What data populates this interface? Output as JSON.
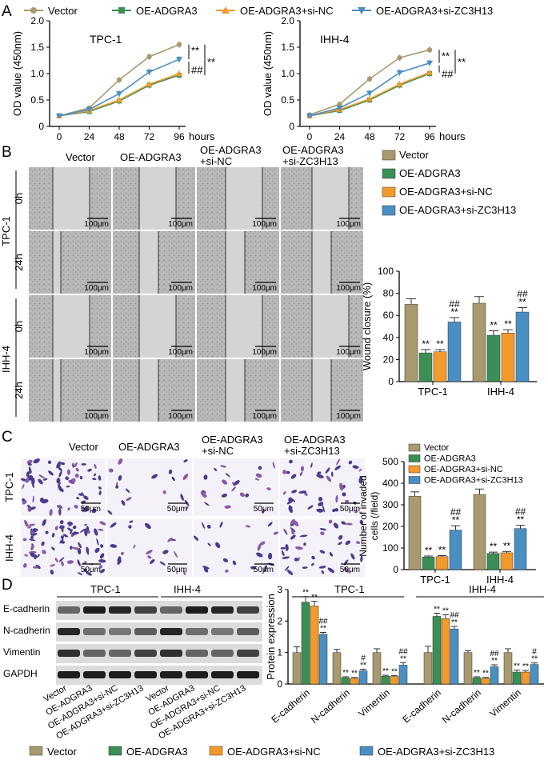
{
  "colors": {
    "vector": "#a89a6e",
    "oe": "#3b8f55",
    "sinc": "#f39a2c",
    "sizc": "#4a8fc2",
    "err": "#333333"
  },
  "legend_top": [
    "Vector",
    "OE-ADGRA3",
    "OE-ADGRA3+si-NC",
    "OE-ADGRA3+si-ZC3H13"
  ],
  "panel_labels": {
    "a": "A",
    "b": "B",
    "c": "C",
    "d": "D"
  },
  "cck8": {
    "ylabel": "OD value (450nm)",
    "x": [
      0,
      24,
      48,
      72,
      96
    ],
    "x_labels": [
      "0",
      "24",
      "48",
      "72",
      "96"
    ],
    "x_unit": "hours",
    "yticks": [
      "0",
      "0.5",
      "1.0",
      "1.5",
      "2.0"
    ],
    "plots": [
      {
        "title": "TPC-1",
        "marks": [
          "**",
          "##",
          "**"
        ],
        "series": [
          [
            0.2,
            0.35,
            0.88,
            1.32,
            1.55
          ],
          [
            0.2,
            0.28,
            0.48,
            0.78,
            0.97
          ],
          [
            0.2,
            0.3,
            0.5,
            0.8,
            1.0
          ],
          [
            0.2,
            0.32,
            0.62,
            1.03,
            1.27
          ]
        ]
      },
      {
        "title": "IHH-4",
        "marks": [
          "**",
          "##",
          "**"
        ],
        "series": [
          [
            0.22,
            0.42,
            0.9,
            1.3,
            1.45
          ],
          [
            0.2,
            0.3,
            0.5,
            0.78,
            1.0
          ],
          [
            0.2,
            0.32,
            0.52,
            0.8,
            1.02
          ],
          [
            0.2,
            0.35,
            0.63,
            1.02,
            1.2
          ]
        ]
      }
    ]
  },
  "wound": {
    "col_headers": [
      "Vector",
      "OE-ADGRA3",
      "OE-ADGRA3\n+si-NC",
      "OE-ADGRA3\n+si-ZC3H13"
    ],
    "cell_lines": [
      "TPC-1",
      "IHH-4"
    ],
    "times": [
      "0h",
      "24h"
    ],
    "scale": "100μm",
    "chart_data": {
      "type": "bar",
      "ylabel": "Wound closure (%)",
      "categories": [
        "TPC-1",
        "IHH-4"
      ],
      "yticks": [
        "0",
        "20",
        "40",
        "60",
        "80",
        "100"
      ],
      "ylim": [
        0,
        100
      ],
      "values": [
        [
          70,
          26,
          27,
          54
        ],
        [
          71,
          42,
          44,
          63
        ]
      ],
      "errors": [
        [
          5,
          3,
          2,
          4
        ],
        [
          6,
          4,
          3,
          4
        ]
      ],
      "marks": [
        [
          "",
          "**",
          "**",
          "##\n**"
        ],
        [
          "",
          "**",
          "**",
          "##\n**"
        ]
      ]
    }
  },
  "transwell": {
    "col_headers": [
      "Vector",
      "OE-ADGRA3",
      "OE-ADGRA3\n+si-NC",
      "OE-ADGRA3\n+si-ZC3H13"
    ],
    "cell_lines": [
      "TPC-1",
      "IHH-4"
    ],
    "scale": "50μm",
    "chart_data": {
      "type": "bar",
      "ylabel": "Number of invaded\ncells (/field)",
      "categories": [
        "TPC-1",
        "IHH-4"
      ],
      "yticks": [
        "0",
        "100",
        "200",
        "300",
        "400",
        "500"
      ],
      "ylim": [
        0,
        500
      ],
      "values": [
        [
          340,
          58,
          60,
          183
        ],
        [
          348,
          75,
          78,
          190
        ]
      ],
      "errors": [
        [
          20,
          5,
          5,
          20
        ],
        [
          25,
          6,
          6,
          15
        ]
      ],
      "marks": [
        [
          "",
          "**",
          "**",
          "##\n**"
        ],
        [
          "",
          "**",
          "**",
          "##\n**"
        ]
      ]
    }
  },
  "western": {
    "groups": [
      "TPC-1",
      "IHH-4"
    ],
    "proteins": [
      "E-cadherin",
      "N-cadherin",
      "Vimentin",
      "GAPDH"
    ],
    "lanes": [
      "Vector",
      "OE-ADGRA3",
      "OE-ADGRA3+si-NC",
      "OE-ADGRA3+si-ZC3H13"
    ],
    "intensity": [
      [
        0.55,
        0.95,
        0.9,
        0.75
      ],
      [
        0.9,
        0.5,
        0.45,
        0.6
      ],
      [
        0.85,
        0.55,
        0.55,
        0.75
      ],
      [
        0.95,
        0.95,
        0.95,
        0.95
      ]
    ]
  },
  "protein_chart": {
    "type": "bar",
    "ylabel": "Protein expression",
    "yticks": [
      "0",
      "1",
      "2",
      "3"
    ],
    "ylim": [
      0,
      3
    ],
    "groups": [
      "TPC-1",
      "IHH-4"
    ],
    "categories": [
      "E-cadherin",
      "N-cadherin",
      "Vimentin"
    ],
    "values": [
      [
        [
          1.0,
          2.6,
          2.48,
          1.58
        ],
        [
          1.0,
          0.2,
          0.18,
          0.42
        ],
        [
          1.0,
          0.25,
          0.24,
          0.6
        ]
      ],
      [
        [
          1.0,
          2.15,
          2.08,
          1.75
        ],
        [
          1.0,
          0.2,
          0.18,
          0.55
        ],
        [
          1.0,
          0.38,
          0.38,
          0.62
        ]
      ]
    ],
    "errors": [
      [
        [
          0.18,
          0.18,
          0.15,
          0.06
        ],
        [
          0.1,
          0.03,
          0.03,
          0.05
        ],
        [
          0.12,
          0.03,
          0.03,
          0.08
        ]
      ],
      [
        [
          0.2,
          0.1,
          0.12,
          0.08
        ],
        [
          0.06,
          0.03,
          0.03,
          0.06
        ],
        [
          0.12,
          0.06,
          0.05,
          0.05
        ]
      ]
    ],
    "marks": [
      [
        [
          "",
          "**",
          "**",
          "##\n**"
        ],
        [
          "",
          "**",
          "**",
          "#\n**"
        ],
        [
          "",
          "**",
          "**",
          "##\n**"
        ]
      ],
      [
        [
          "",
          "**",
          "**",
          "##\n**"
        ],
        [
          "",
          "**",
          "**",
          "##\n**"
        ],
        [
          "",
          "**",
          "**",
          "#\n**"
        ]
      ]
    ]
  },
  "legend_bottom": [
    "Vector",
    "OE-ADGRA3",
    "OE-ADGRA3+si-NC",
    "OE-ADGRA3+si-ZC3H13"
  ]
}
